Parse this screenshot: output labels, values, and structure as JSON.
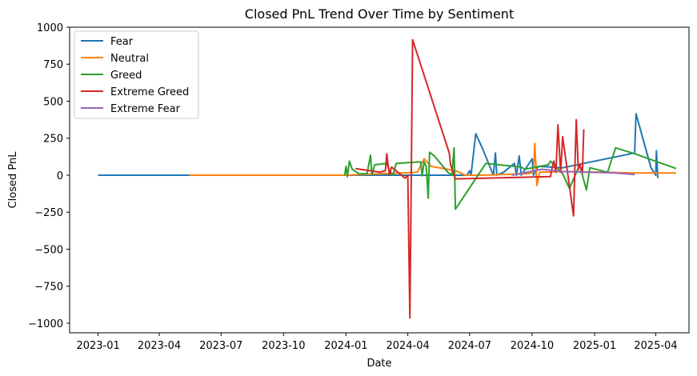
{
  "chart_data": {
    "type": "line",
    "title": "Closed PnL Trend Over Time by Sentiment",
    "xlabel": "Date",
    "ylabel": "Closed PnL",
    "x_scale": "date",
    "xlim": [
      "2022-11-20",
      "2025-05-20"
    ],
    "ylim": [
      -1065,
      1000
    ],
    "x_ticks": [
      "2023-01-01",
      "2023-04-01",
      "2023-07-01",
      "2023-10-01",
      "2024-01-01",
      "2024-04-01",
      "2024-07-01",
      "2024-10-01",
      "2025-01-01",
      "2025-04-01"
    ],
    "x_tick_labels": [
      "2023-01",
      "2023-04",
      "2023-07",
      "2023-10",
      "2024-01",
      "2024-04",
      "2024-07",
      "2024-10",
      "2025-01",
      "2025-04"
    ],
    "y_ticks": [
      1000,
      750,
      500,
      250,
      0,
      -250,
      -500,
      -750,
      -1000
    ],
    "y_tick_labels": [
      "1000",
      "750",
      "500",
      "250",
      "0",
      "−250",
      "−500",
      "−750",
      "−1000"
    ],
    "grid": false,
    "legend_position": "upper-left",
    "series": [
      {
        "name": "Fear",
        "color": "#1f77b4",
        "points": [
          [
            "2023-01-01",
            0
          ],
          [
            "2023-05-01",
            0
          ],
          [
            "2023-10-01",
            0
          ],
          [
            "2024-01-01",
            0
          ],
          [
            "2024-06-01",
            0
          ],
          [
            "2024-06-27",
            0
          ],
          [
            "2024-07-01",
            30
          ],
          [
            "2024-07-03",
            0
          ],
          [
            "2024-07-10",
            280
          ],
          [
            "2024-07-20",
            180
          ],
          [
            "2024-08-05",
            0
          ],
          [
            "2024-08-08",
            150
          ],
          [
            "2024-08-10",
            0
          ],
          [
            "2024-08-20",
            20
          ],
          [
            "2024-09-05",
            80
          ],
          [
            "2024-09-08",
            0
          ],
          [
            "2024-09-12",
            130
          ],
          [
            "2024-09-15",
            0
          ],
          [
            "2024-10-01",
            110
          ],
          [
            "2024-10-03",
            0
          ],
          [
            "2024-10-10",
            60
          ],
          [
            "2024-11-15",
            50
          ],
          [
            "2025-03-01",
            150
          ],
          [
            "2025-03-03",
            415
          ],
          [
            "2025-03-25",
            50
          ],
          [
            "2025-04-01",
            0
          ],
          [
            "2025-04-02",
            165
          ],
          [
            "2025-04-04",
            -20
          ]
        ]
      },
      {
        "name": "Neutral",
        "color": "#ff7f0e",
        "points": [
          [
            "2023-05-15",
            0
          ],
          [
            "2023-09-01",
            0
          ],
          [
            "2024-01-01",
            0
          ],
          [
            "2024-04-15",
            20
          ],
          [
            "2024-04-25",
            110
          ],
          [
            "2024-05-05",
            60
          ],
          [
            "2024-06-10",
            30
          ],
          [
            "2024-06-25",
            0
          ],
          [
            "2024-07-20",
            0
          ],
          [
            "2024-09-25",
            10
          ],
          [
            "2024-10-03",
            20
          ],
          [
            "2024-10-05",
            215
          ],
          [
            "2024-10-08",
            -70
          ],
          [
            "2024-10-12",
            20
          ],
          [
            "2024-11-20",
            25
          ],
          [
            "2025-01-15",
            20
          ],
          [
            "2025-03-01",
            15
          ],
          [
            "2025-05-01",
            15
          ]
        ]
      },
      {
        "name": "Greed",
        "color": "#2ca02c",
        "points": [
          [
            "2023-12-30",
            0
          ],
          [
            "2024-01-01",
            60
          ],
          [
            "2024-01-03",
            -10
          ],
          [
            "2024-01-06",
            95
          ],
          [
            "2024-01-10",
            40
          ],
          [
            "2024-01-20",
            10
          ],
          [
            "2024-02-01",
            10
          ],
          [
            "2024-02-06",
            135
          ],
          [
            "2024-02-08",
            0
          ],
          [
            "2024-02-12",
            70
          ],
          [
            "2024-03-01",
            80
          ],
          [
            "2024-03-05",
            30
          ],
          [
            "2024-03-10",
            0
          ],
          [
            "2024-03-15",
            80
          ],
          [
            "2024-04-20",
            90
          ],
          [
            "2024-04-22",
            -5
          ],
          [
            "2024-04-25",
            90
          ],
          [
            "2024-04-28",
            60
          ],
          [
            "2024-05-01",
            -155
          ],
          [
            "2024-05-03",
            155
          ],
          [
            "2024-05-10",
            130
          ],
          [
            "2024-05-30",
            20
          ],
          [
            "2024-06-05",
            0
          ],
          [
            "2024-06-08",
            185
          ],
          [
            "2024-06-10",
            -230
          ],
          [
            "2024-07-25",
            80
          ],
          [
            "2024-09-15",
            55
          ],
          [
            "2024-09-20",
            40
          ],
          [
            "2024-10-25",
            70
          ],
          [
            "2024-10-28",
            95
          ],
          [
            "2024-11-15",
            10
          ],
          [
            "2024-11-25",
            -90
          ],
          [
            "2024-12-10",
            70
          ],
          [
            "2024-12-20",
            -100
          ],
          [
            "2024-12-25",
            50
          ],
          [
            "2025-01-20",
            20
          ],
          [
            "2025-02-01",
            185
          ],
          [
            "2025-03-01",
            145
          ],
          [
            "2025-05-01",
            45
          ]
        ]
      },
      {
        "name": "Extreme Greed",
        "color": "#d62728",
        "points": [
          [
            "2024-01-15",
            45
          ],
          [
            "2024-02-20",
            20
          ],
          [
            "2024-02-28",
            30
          ],
          [
            "2024-03-01",
            145
          ],
          [
            "2024-03-05",
            0
          ],
          [
            "2024-03-08",
            55
          ],
          [
            "2024-03-28",
            -20
          ],
          [
            "2024-04-01",
            0
          ],
          [
            "2024-04-04",
            -965
          ],
          [
            "2024-04-08",
            915
          ],
          [
            "2024-06-01",
            150
          ],
          [
            "2024-06-03",
            70
          ],
          [
            "2024-06-10",
            -25
          ],
          [
            "2024-10-28",
            -10
          ],
          [
            "2024-10-30",
            40
          ],
          [
            "2024-11-02",
            95
          ],
          [
            "2024-11-05",
            20
          ],
          [
            "2024-11-08",
            340
          ],
          [
            "2024-11-12",
            20
          ],
          [
            "2024-11-15",
            260
          ],
          [
            "2024-12-01",
            -275
          ],
          [
            "2024-12-05",
            375
          ],
          [
            "2024-12-08",
            40
          ],
          [
            "2024-12-10",
            75
          ],
          [
            "2024-12-14",
            15
          ],
          [
            "2024-12-16",
            310
          ]
        ]
      },
      {
        "name": "Extreme Fear",
        "color": "#9467bd",
        "points": [
          [
            "2024-09-01",
            0
          ],
          [
            "2024-10-15",
            40
          ],
          [
            "2024-11-15",
            25
          ],
          [
            "2024-12-20",
            20
          ],
          [
            "2025-02-01",
            15
          ],
          [
            "2025-03-01",
            5
          ]
        ]
      }
    ]
  }
}
